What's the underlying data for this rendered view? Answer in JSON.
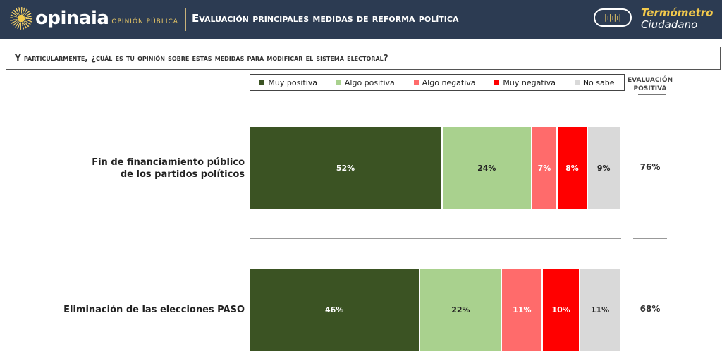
{
  "header": {
    "brand": "opinaia",
    "brand_sub": "OPINIÓN PÚBLICA",
    "title": "Evaluación principales medidas de reforma política",
    "badge_line1": "Termómetro",
    "badge_line2": "Ciudadano"
  },
  "question": "Y particularmente, ¿cuál es tu opinión sobre estas medidas para modificar el sistema electoral?",
  "chart_data": {
    "type": "bar",
    "stacked": true,
    "orientation": "horizontal",
    "legend_position": "top",
    "series": [
      {
        "name": "Muy positiva",
        "color": "#3b5323"
      },
      {
        "name": "Algo positiva",
        "color": "#a9d18e"
      },
      {
        "name": "Algo negativa",
        "color": "#ff6b6b"
      },
      {
        "name": "Muy negativa",
        "color": "#ff0000"
      },
      {
        "name": "No sabe",
        "color": "#d9d9d9"
      }
    ],
    "categories": [
      "Fin de financiamiento público de los partidos políticos",
      "Eliminación de las elecciones PASO"
    ],
    "category_lines": [
      [
        "Fin de financiamiento público",
        "de los partidos políticos"
      ],
      [
        "Eliminación de las elecciones PASO"
      ]
    ],
    "values": [
      [
        52,
        24,
        7,
        8,
        9
      ],
      [
        46,
        22,
        11,
        10,
        11
      ]
    ],
    "evaluation_header": "EVALUACIÓN POSITIVA",
    "evaluation": [
      "76%",
      "68%"
    ]
  }
}
